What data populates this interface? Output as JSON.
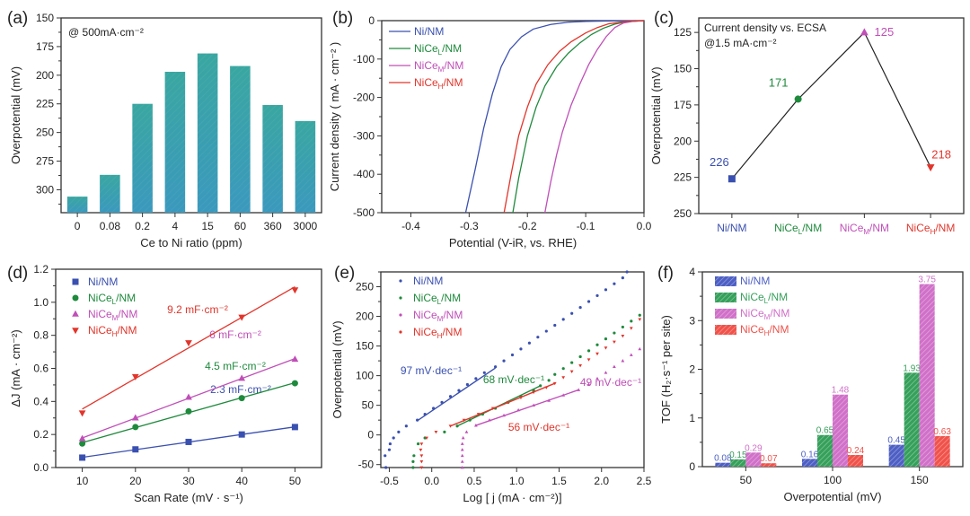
{
  "figure": {
    "panel_labels": [
      "(a)",
      "(b)",
      "(c)",
      "(d)",
      "(e)",
      "(f)"
    ]
  },
  "chart_data": [
    {
      "id": "a",
      "type": "bar",
      "title": "",
      "annotation": "@ 500mA·cm⁻²",
      "xlabel": "Ce to Ni ratio (ppm)",
      "ylabel": "Overpotential (mV)",
      "y_inverted": true,
      "ylim": [
        150,
        320
      ],
      "yticks": [
        150,
        175,
        200,
        225,
        250,
        275,
        300
      ],
      "categories": [
        "0",
        "0.08",
        "0.2",
        "4",
        "15",
        "60",
        "360",
        "3000"
      ],
      "values": [
        306,
        287,
        225,
        197,
        181,
        192,
        226,
        240
      ],
      "color": "#3aa3a8"
    },
    {
      "id": "b",
      "type": "line",
      "xlabel": "Potential (V-iR, vs. RHE)",
      "ylabel": "Current density ( mA · cm⁻² )",
      "xlim": [
        -0.45,
        0.0
      ],
      "ylim": [
        -500,
        0
      ],
      "xticks": [
        -0.4,
        -0.3,
        -0.2,
        -0.1,
        0.0
      ],
      "yticks": [
        0,
        -100,
        -200,
        -300,
        -400,
        -500
      ],
      "legend_position": "top-left",
      "series": [
        {
          "name": "Ni/NM",
          "sub": "",
          "color": "#3a50b0",
          "x": [
            -0.306,
            -0.29,
            -0.275,
            -0.26,
            -0.245,
            -0.23,
            -0.21,
            -0.19,
            -0.16,
            -0.13,
            -0.1,
            -0.07,
            -0.04,
            0.0
          ],
          "y": [
            -500,
            -390,
            -280,
            -190,
            -120,
            -75,
            -42,
            -22,
            -10,
            -4,
            -2,
            -1,
            -0.5,
            0
          ]
        },
        {
          "name": "NiCe",
          "sub": "L",
          "color": "#1e8a3c",
          "x": [
            -0.225,
            -0.215,
            -0.2,
            -0.185,
            -0.17,
            -0.15,
            -0.13,
            -0.11,
            -0.09,
            -0.07,
            -0.05,
            -0.03,
            0.0
          ],
          "y": [
            -500,
            -410,
            -300,
            -225,
            -170,
            -120,
            -85,
            -58,
            -36,
            -20,
            -9,
            -3,
            0
          ]
        },
        {
          "name": "NiCe",
          "sub": "M",
          "color": "#c04fb8",
          "x": [
            -0.17,
            -0.16,
            -0.15,
            -0.14,
            -0.125,
            -0.11,
            -0.095,
            -0.08,
            -0.065,
            -0.05,
            -0.035,
            -0.02,
            0.0
          ],
          "y": [
            -500,
            -420,
            -350,
            -290,
            -220,
            -165,
            -115,
            -75,
            -42,
            -18,
            -6,
            -2,
            0
          ]
        },
        {
          "name": "NiCe",
          "sub": "H",
          "color": "#e2352b",
          "x": [
            -0.24,
            -0.228,
            -0.215,
            -0.2,
            -0.185,
            -0.165,
            -0.145,
            -0.125,
            -0.1,
            -0.08,
            -0.06,
            -0.035,
            0.0
          ],
          "y": [
            -500,
            -400,
            -300,
            -225,
            -165,
            -115,
            -80,
            -55,
            -32,
            -18,
            -8,
            -3,
            0
          ]
        }
      ]
    },
    {
      "id": "c",
      "type": "line",
      "annotation_line1": "Current density vs. ECSA",
      "annotation_line2": "@1.5 mA·cm⁻²",
      "ylabel": "Overpotential (mV)",
      "y_inverted": true,
      "ylim": [
        115,
        250
      ],
      "yticks": [
        125,
        150,
        175,
        200,
        225,
        250
      ],
      "categories": [
        {
          "name": "Ni/NM",
          "sub": "",
          "color": "#3a50b0",
          "marker": "square"
        },
        {
          "name": "NiCe",
          "sub": "L",
          "color": "#1e8a3c",
          "marker": "circle"
        },
        {
          "name": "NiCe",
          "sub": "M",
          "color": "#c04fb8",
          "marker": "triangle-up"
        },
        {
          "name": "NiCe",
          "sub": "H",
          "color": "#e2352b",
          "marker": "triangle-down"
        }
      ],
      "values": [
        226,
        171,
        125,
        218
      ],
      "data_labels": [
        "226",
        "171",
        "125",
        "218"
      ]
    },
    {
      "id": "d",
      "type": "scatter",
      "xlabel": "Scan Rate (mV · s⁻¹)",
      "ylabel": "ΔJ (mA · cm⁻²)",
      "xlim": [
        5,
        55
      ],
      "ylim": [
        0.0,
        1.2
      ],
      "xticks": [
        10,
        20,
        30,
        40,
        50
      ],
      "yticks": [
        0.0,
        0.2,
        0.4,
        0.6,
        0.8,
        1.0,
        1.2
      ],
      "legend_position": "top-left",
      "x": [
        10,
        20,
        30,
        40,
        50
      ],
      "series": [
        {
          "name": "Ni/NM",
          "sub": "",
          "color": "#3a50b0",
          "marker": "square",
          "values": [
            0.06,
            0.11,
            0.155,
            0.2,
            0.245
          ],
          "fit_label": "2.3 mF·cm⁻²"
        },
        {
          "name": "NiCe",
          "sub": "L",
          "color": "#1e8a3c",
          "marker": "circle",
          "values": [
            0.145,
            0.245,
            0.34,
            0.42,
            0.51
          ],
          "fit_label": "4.5 mF·cm⁻²"
        },
        {
          "name": "NiCe",
          "sub": "M",
          "color": "#c04fb8",
          "marker": "triangle-up",
          "values": [
            0.175,
            0.3,
            0.425,
            0.54,
            0.655
          ],
          "fit_label": "6 mF·cm⁻²"
        },
        {
          "name": "NiCe",
          "sub": "H",
          "color": "#e2352b",
          "marker": "triangle-down",
          "values": [
            0.33,
            0.55,
            0.755,
            0.91,
            1.075
          ],
          "fit_label": "9.2 mF·cm⁻²"
        }
      ]
    },
    {
      "id": "e",
      "type": "scatter",
      "xlabel": "Log [ j (mA · cm⁻²)]",
      "ylabel": "Overpotential (mV)",
      "xlim": [
        -0.6,
        2.5
      ],
      "ylim": [
        -55,
        275
      ],
      "xticks": [
        -0.5,
        0.0,
        0.5,
        1.0,
        1.5,
        2.0,
        2.5
      ],
      "yticks": [
        -50,
        0,
        50,
        100,
        150,
        200,
        250
      ],
      "legend_position": "top-left",
      "series": [
        {
          "name": "Ni/NM",
          "sub": "",
          "color": "#3a50b0",
          "tafel": "97 mV·dec⁻¹",
          "fit": [
            [
              -0.17,
              24
            ],
            [
              0.75,
              113
            ]
          ],
          "points": [
            [
              -0.54,
              -55
            ],
            [
              -0.55,
              -35
            ],
            [
              -0.5,
              -25
            ],
            [
              -0.49,
              -15
            ],
            [
              -0.45,
              -5
            ],
            [
              -0.39,
              5
            ],
            [
              -0.3,
              15
            ],
            [
              -0.17,
              25
            ],
            [
              -0.08,
              35
            ],
            [
              0.02,
              45
            ],
            [
              0.12,
              55
            ],
            [
              0.22,
              65
            ],
            [
              0.32,
              75
            ],
            [
              0.42,
              85
            ],
            [
              0.52,
              95
            ],
            [
              0.62,
              105
            ],
            [
              0.75,
              115
            ],
            [
              0.85,
              125
            ],
            [
              0.95,
              135
            ],
            [
              1.05,
              145
            ],
            [
              1.15,
              155
            ],
            [
              1.25,
              165
            ],
            [
              1.35,
              175
            ],
            [
              1.45,
              185
            ],
            [
              1.55,
              195
            ],
            [
              1.65,
              205
            ],
            [
              1.75,
              215
            ],
            [
              1.85,
              225
            ],
            [
              1.95,
              235
            ],
            [
              2.05,
              245
            ],
            [
              2.15,
              255
            ],
            [
              2.25,
              265
            ],
            [
              2.3,
              275
            ]
          ]
        },
        {
          "name": "NiCe",
          "sub": "L",
          "color": "#1e8a3c",
          "tafel": "68 mV·dec⁻¹",
          "fit": [
            [
              0.3,
              15
            ],
            [
              1.28,
              83
            ]
          ],
          "points": [
            [
              -0.22,
              -55
            ],
            [
              -0.22,
              -45
            ],
            [
              -0.21,
              -35
            ],
            [
              -0.16,
              -15
            ],
            [
              -0.08,
              -5
            ],
            [
              0.15,
              5
            ],
            [
              0.3,
              15
            ],
            [
              0.45,
              25
            ],
            [
              0.6,
              35
            ],
            [
              0.75,
              45
            ],
            [
              0.9,
              55
            ],
            [
              1.05,
              65
            ],
            [
              1.2,
              75
            ],
            [
              1.28,
              83
            ],
            [
              1.38,
              92
            ],
            [
              1.45,
              102
            ],
            [
              1.55,
              112
            ],
            [
              1.65,
              122
            ],
            [
              1.75,
              132
            ],
            [
              1.85,
              142
            ],
            [
              1.95,
              152
            ],
            [
              2.05,
              162
            ],
            [
              2.15,
              172
            ],
            [
              2.25,
              182
            ],
            [
              2.35,
              192
            ],
            [
              2.45,
              202
            ]
          ]
        },
        {
          "name": "NiCe",
          "sub": "M",
          "color": "#c04fb8",
          "tafel": "49 mV·dec⁻¹",
          "fit": [
            [
              0.52,
              16
            ],
            [
              1.73,
              76
            ]
          ],
          "points": [
            [
              0.36,
              -55
            ],
            [
              0.36,
              -45
            ],
            [
              0.36,
              -35
            ],
            [
              0.36,
              -25
            ],
            [
              0.36,
              -15
            ],
            [
              0.37,
              -5
            ],
            [
              0.41,
              5
            ],
            [
              0.52,
              16
            ],
            [
              0.68,
              25
            ],
            [
              0.85,
              33
            ],
            [
              1.02,
              42
            ],
            [
              1.2,
              50
            ],
            [
              1.38,
              58
            ],
            [
              1.55,
              67
            ],
            [
              1.73,
              76
            ],
            [
              1.85,
              85
            ],
            [
              1.95,
              95
            ],
            [
              2.05,
              105
            ],
            [
              2.15,
              115
            ],
            [
              2.25,
              125
            ],
            [
              2.35,
              135
            ],
            [
              2.45,
              145
            ]
          ]
        },
        {
          "name": "NiCe",
          "sub": "H",
          "color": "#e2352b",
          "tafel": "56 mV·dec⁻¹",
          "fit": [
            [
              0.22,
              15
            ],
            [
              1.45,
              87
            ]
          ],
          "points": [
            [
              -0.12,
              -55
            ],
            [
              -0.12,
              -45
            ],
            [
              -0.12,
              -35
            ],
            [
              -0.13,
              -25
            ],
            [
              -0.12,
              -15
            ],
            [
              -0.06,
              -5
            ],
            [
              0.05,
              5
            ],
            [
              0.22,
              15
            ],
            [
              0.38,
              25
            ],
            [
              0.55,
              35
            ],
            [
              0.72,
              45
            ],
            [
              0.9,
              55
            ],
            [
              1.05,
              63
            ],
            [
              1.2,
              72
            ],
            [
              1.35,
              80
            ],
            [
              1.45,
              87
            ],
            [
              1.55,
              97
            ],
            [
              1.65,
              107
            ],
            [
              1.75,
              117
            ],
            [
              1.85,
              127
            ],
            [
              1.95,
              137
            ],
            [
              2.05,
              147
            ],
            [
              2.15,
              157
            ],
            [
              2.25,
              167
            ],
            [
              2.35,
              180
            ],
            [
              2.45,
              195
            ]
          ]
        }
      ]
    },
    {
      "id": "f",
      "type": "bar",
      "xlabel": "Overpotential (mV)",
      "ylabel": "TOF (H₂·s⁻¹ per site)",
      "ylim": [
        0,
        4
      ],
      "yticks": [
        0,
        1,
        2,
        3,
        4
      ],
      "categories": [
        "50",
        "100",
        "150"
      ],
      "legend_position": "top-left",
      "series": [
        {
          "name": "Ni/NM",
          "sub": "",
          "color": "#4d5fc4",
          "values": [
            0.08,
            0.16,
            0.45
          ],
          "labels": [
            "0.08",
            "0.16",
            "0.45"
          ]
        },
        {
          "name": "NiCe",
          "sub": "L",
          "color": "#35a05a",
          "values": [
            0.15,
            0.65,
            1.93
          ],
          "labels": [
            "0.15",
            "0.65",
            "1.93"
          ]
        },
        {
          "name": "NiCe",
          "sub": "M",
          "color": "#d070c8",
          "values": [
            0.29,
            1.48,
            3.75
          ],
          "labels": [
            "0.29",
            "1.48",
            "3.75"
          ]
        },
        {
          "name": "NiCe",
          "sub": "H",
          "color": "#f0524a",
          "values": [
            0.07,
            0.24,
            0.63
          ],
          "labels": [
            "0.07",
            "0.24",
            "0.63"
          ]
        }
      ]
    }
  ]
}
